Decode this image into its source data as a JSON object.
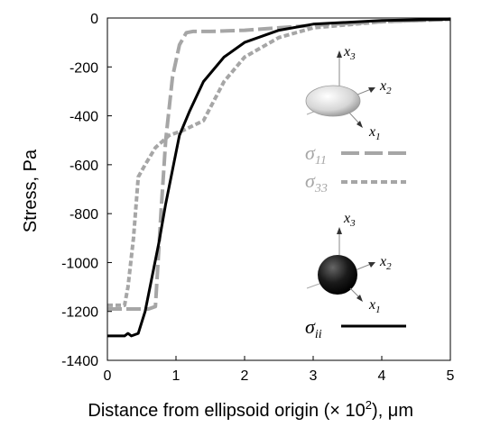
{
  "chart_data": {
    "type": "line",
    "xlabel": "Distance from ellipsoid origin (× 10",
    "xlabel_sup": "2",
    "xlabel_unit": "), μm",
    "ylabel": "Stress, Pa",
    "xlim": [
      0,
      5
    ],
    "ylim": [
      -1400,
      0
    ],
    "x_ticks": [
      "0",
      "1",
      "2",
      "3",
      "4",
      "5"
    ],
    "y_ticks": [
      "0",
      "-200",
      "-400",
      "-600",
      "-800",
      "-1000",
      "-1200",
      "-1400"
    ],
    "grid": false,
    "series": [
      {
        "name": "σ11",
        "name_sym": "σ",
        "name_sub": "11",
        "color": "#a6a6a6",
        "dash": "long-dash",
        "x": [
          0,
          0.45,
          0.6,
          0.7,
          0.78,
          0.85,
          0.95,
          1.05,
          1.15,
          1.25,
          1.5,
          2.0,
          3.0,
          4.0,
          5.0
        ],
        "y": [
          -1190,
          -1190,
          -1190,
          -1180,
          -800,
          -500,
          -240,
          -110,
          -60,
          -55,
          -55,
          -50,
          -30,
          -15,
          -5
        ]
      },
      {
        "name": "σ33",
        "name_sym": "σ",
        "name_sub": "33",
        "color": "#a6a6a6",
        "dash": "short-dash",
        "x": [
          0,
          0.25,
          0.3,
          0.38,
          0.45,
          0.55,
          0.7,
          0.9,
          1.1,
          1.4,
          1.7,
          2.0,
          2.5,
          3.0,
          4.0,
          5.0
        ],
        "y": [
          -1175,
          -1175,
          -1100,
          -900,
          -650,
          -600,
          -530,
          -480,
          -460,
          -420,
          -260,
          -160,
          -80,
          -40,
          -15,
          -5
        ]
      },
      {
        "name": "σii",
        "name_sym": "σ",
        "name_sub": "ii",
        "color": "#000000",
        "dash": "solid",
        "x": [
          0,
          0.25,
          0.3,
          0.35,
          0.45,
          0.55,
          0.65,
          0.75,
          0.85,
          0.95,
          1.05,
          1.2,
          1.4,
          1.7,
          2.0,
          2.5,
          3.0,
          4.0,
          5.0
        ],
        "y": [
          -1300,
          -1300,
          -1290,
          -1300,
          -1290,
          -1200,
          -1060,
          -920,
          -760,
          -620,
          -480,
          -380,
          -260,
          -160,
          -100,
          -50,
          -25,
          -10,
          -5
        ]
      }
    ],
    "insets": [
      {
        "shape": "ellipsoid",
        "color": "#d8d8d8",
        "axes": [
          "x",
          "x",
          "x"
        ],
        "axis_sub": [
          "3",
          "2",
          "1"
        ]
      },
      {
        "shape": "sphere",
        "color": "#1a1a1a",
        "axes": [
          "x",
          "x",
          "x"
        ],
        "axis_sub": [
          "3",
          "2",
          "1"
        ]
      }
    ]
  }
}
